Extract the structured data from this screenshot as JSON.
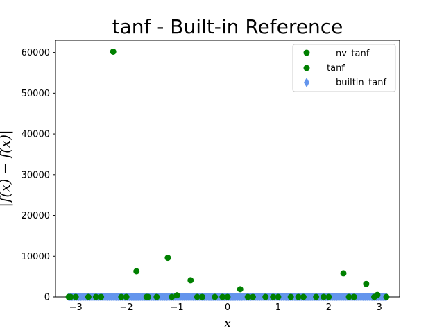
{
  "chart_data": {
    "type": "scatter",
    "title": "tanf - Built-in Reference",
    "xlabel": "x",
    "ylabel": "|f(x) − f(x)|",
    "xlim": [
      -3.4,
      3.4
    ],
    "ylim": [
      0,
      63000
    ],
    "xticks": [
      -3,
      -2,
      -1,
      0,
      1,
      2,
      3
    ],
    "yticks": [
      0,
      10000,
      20000,
      30000,
      40000,
      50000,
      60000
    ],
    "grid": false,
    "legend_position": "top-right",
    "series": [
      {
        "name": "__nv_tanf",
        "marker": "circle",
        "color": "#008000",
        "x": [
          -3.14,
          -3.0,
          -2.75,
          -2.5,
          -2.26,
          -2.0,
          -1.8,
          -1.57,
          -1.4,
          -1.18,
          -1.0,
          -0.73,
          -0.5,
          -0.25,
          0.0,
          0.25,
          0.5,
          0.75,
          1.0,
          1.25,
          1.5,
          1.75,
          2.0,
          2.29,
          2.5,
          2.74,
          2.96,
          3.14
        ],
        "y": [
          0,
          0,
          0,
          0,
          60200,
          0,
          6300,
          0,
          0,
          9600,
          400,
          4100,
          0,
          0,
          0,
          1900,
          0,
          0,
          0,
          0,
          0,
          0,
          0,
          5800,
          0,
          3200,
          500,
          0
        ]
      },
      {
        "name": "tanf",
        "marker": "circle",
        "color": "#008000",
        "x": [
          -3.1,
          -2.6,
          -2.1,
          -1.6,
          -1.1,
          -0.6,
          -0.1,
          0.4,
          0.9,
          1.4,
          1.9,
          2.4,
          2.9
        ],
        "y": [
          0,
          0,
          0,
          0,
          0,
          0,
          0,
          0,
          0,
          0,
          0,
          0,
          0
        ]
      },
      {
        "name": "__builtin_tanf",
        "marker": "diamond",
        "color": "#6495ed",
        "x_range": [
          -3.14,
          3.14
        ],
        "y": 0
      }
    ]
  }
}
